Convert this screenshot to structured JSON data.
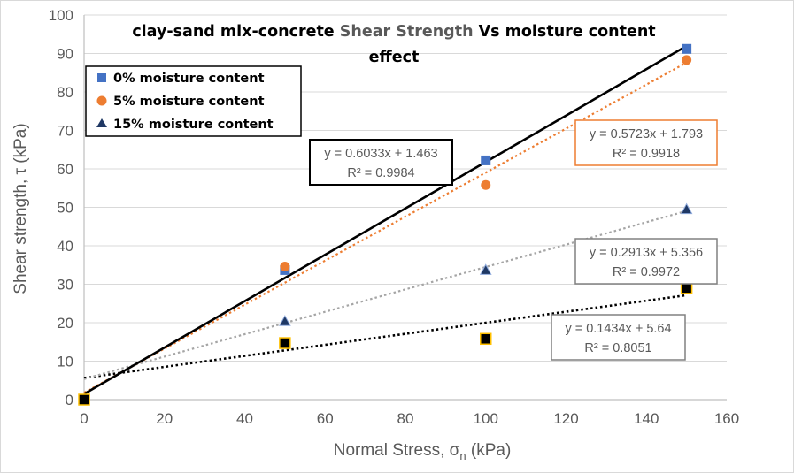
{
  "chart_data": {
    "type": "scatter",
    "title": {
      "line1_prefix": "clay-sand mix-concrete ",
      "line1_highlight": "Shear Strength",
      "line1_suffix": " Vs moisture content",
      "line2": "effect"
    },
    "xlabel": "Normal Stress, σn (kPa)",
    "xlabel_parts": {
      "main": "Normal Stress, σ",
      "sub": "n",
      "unit": " (kPa)"
    },
    "ylabel": "Shear strength, τ (kPa)",
    "xlim": [
      0,
      160
    ],
    "ylim": [
      0,
      100
    ],
    "x_ticks": [
      0,
      20,
      40,
      60,
      80,
      100,
      120,
      140,
      160
    ],
    "y_ticks": [
      0,
      10,
      20,
      30,
      40,
      50,
      60,
      70,
      80,
      90,
      100
    ],
    "grid": true,
    "legend_position": "top-left",
    "series": [
      {
        "name": "0% moisture content",
        "marker": "square",
        "color": "#4472C4",
        "x": [
          0,
          50,
          100,
          150
        ],
        "y": [
          0,
          33.7,
          62.2,
          91.2
        ],
        "trendline": {
          "slope": 0.6033,
          "intercept": 1.463,
          "style": "solid",
          "color": "#000000"
        },
        "equation": "y = 0.6033x + 1.463",
        "r2": "R² = 0.9984",
        "equation_box_color": "#000000"
      },
      {
        "name": "5% moisture content",
        "marker": "circle",
        "color": "#ED7D31",
        "x": [
          0,
          50,
          100,
          150
        ],
        "y": [
          0,
          34.6,
          55.8,
          88.3
        ],
        "trendline": {
          "slope": 0.5723,
          "intercept": 1.793,
          "style": "dotted",
          "color": "#ED7D31"
        },
        "equation": "y = 0.5723x + 1.793",
        "r2": "R² = 0.9918",
        "equation_box_color": "#ED7D31"
      },
      {
        "name": "15% moisture content",
        "marker": "triangle",
        "color": "#1F3864",
        "x": [
          0,
          50,
          100,
          150
        ],
        "y": [
          0,
          20.3,
          33.6,
          49.4
        ],
        "trendline": {
          "slope": 0.2913,
          "intercept": 5.356,
          "style": "dotted",
          "color": "#A5A5A5"
        },
        "equation": "y = 0.2913x + 5.356",
        "r2": "R² = 0.9972",
        "equation_box_color": "#808080"
      },
      {
        "marker": "square-black-gold",
        "color": "#000000",
        "x": [
          0,
          50,
          100,
          150
        ],
        "y": [
          0,
          14.7,
          15.8,
          29.0
        ],
        "trendline": {
          "slope": 0.1434,
          "intercept": 5.64,
          "style": "dotted",
          "color": "#000000"
        },
        "equation": "y = 0.1434x + 5.64",
        "r2": "R² = 0.8051",
        "equation_box_color": "#808080"
      }
    ]
  }
}
